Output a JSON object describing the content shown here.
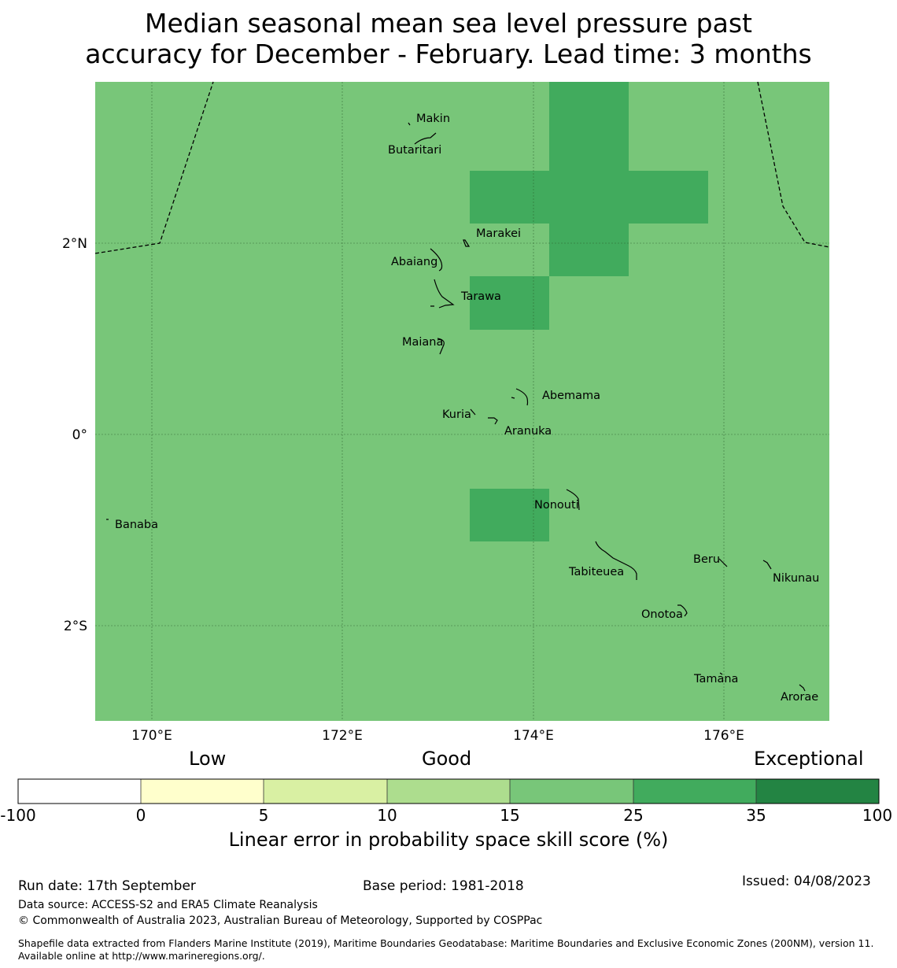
{
  "title": {
    "line1": "Median seasonal mean sea level pressure past",
    "line2": "accuracy for December - February. Lead time: 3 months"
  },
  "map": {
    "background_color": "#78c679",
    "highlight_color": "#41ab5d",
    "lon_ticks": [
      "170°E",
      "172°E",
      "174°E",
      "176°E"
    ],
    "lat_ticks": [
      "2°N",
      "0°",
      "2°S"
    ],
    "islands": [
      "Makin",
      "Butaritari",
      "Marakei",
      "Abaiang",
      "Tarawa",
      "Maiana",
      "Abemama",
      "Kuria",
      "Aranuka",
      "Nonouti",
      "Banaba",
      "Beru",
      "Nikunau",
      "Tabiteuea",
      "Onotoa",
      "Tamana",
      "Arorae"
    ]
  },
  "colorbar": {
    "categories": [
      "Low",
      "Good",
      "Exceptional"
    ],
    "ticks": [
      "-100",
      "0",
      "5",
      "10",
      "15",
      "25",
      "35",
      "100"
    ],
    "colors": [
      "#ffffff",
      "#ffffcc",
      "#d9f0a3",
      "#addd8e",
      "#78c679",
      "#41ab5d",
      "#238443"
    ],
    "label": "Linear error in probability space skill score (%)"
  },
  "footer": {
    "run_date": "Run date: 17th September",
    "base_period": "Base period: 1981-2018",
    "issued": "Issued: 04/08/2023",
    "data_source": "Data source: ACCESS-S2 and ERA5 Climate Reanalysis",
    "copyright": "© Commonwealth of Australia 2023, Australian Bureau of Meteorology, Supported by COSPPac",
    "shapefile": "Shapefile data extracted from Flanders Marine Institute (2019), Maritime Boundaries Geodatabase: Maritime Boundaries and Exclusive Economic Zones (200NM), version 11. Available online at http://www.marineregions.org/."
  }
}
